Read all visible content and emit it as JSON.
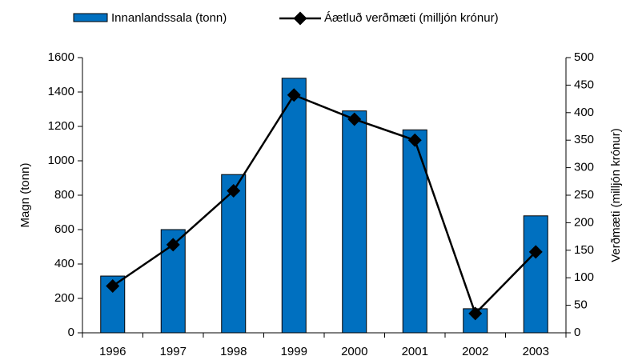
{
  "chart_data": {
    "type": "bar_line",
    "categories": [
      "1996",
      "1997",
      "1998",
      "1999",
      "2000",
      "2001",
      "2002",
      "2003"
    ],
    "series": [
      {
        "name": "Innanlandssala (tonn)",
        "color": "#0070c0",
        "type": "bar",
        "values": [
          330,
          600,
          920,
          1480,
          1290,
          1180,
          140,
          680
        ]
      },
      {
        "name": "Áætluð verðmæti (milljón krónur)",
        "color": "#000000",
        "type": "line",
        "axis": "y2",
        "values": [
          85,
          160,
          258,
          432,
          388,
          350,
          35,
          147
        ]
      }
    ],
    "ylabel": "Magn (tonn)",
    "y2label": "Verðmæti (milljón krónur)",
    "ylim": [
      0,
      1600
    ],
    "yticks": [
      0,
      200,
      400,
      600,
      800,
      1000,
      1200,
      1400,
      1600
    ],
    "y2lim": [
      0,
      500
    ],
    "y2ticks": [
      0,
      50,
      100,
      150,
      200,
      250,
      300,
      350,
      400,
      450,
      500
    ],
    "legend": "top"
  }
}
